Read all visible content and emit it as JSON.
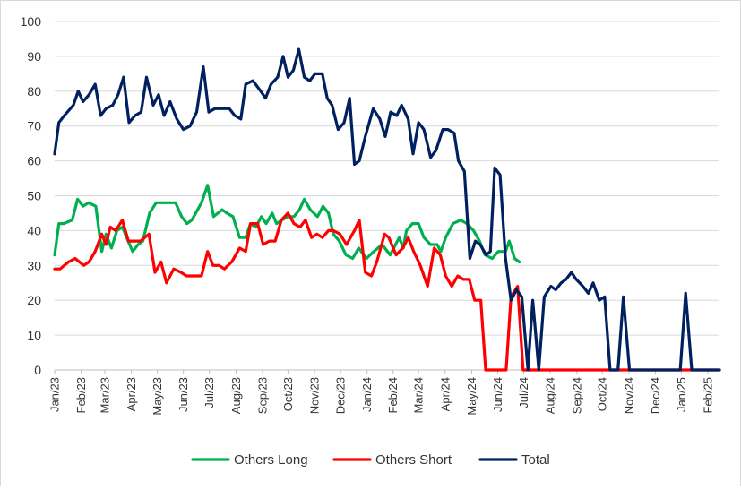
{
  "chart_data": {
    "type": "line",
    "ylim": [
      0,
      100
    ],
    "yticks": [
      "0",
      "10",
      "20",
      "30",
      "40",
      "50",
      "60",
      "70",
      "80",
      "90",
      "100"
    ],
    "xlim": [
      0,
      110
    ],
    "xticks": [
      {
        "label": "Jan/23",
        "x": 0
      },
      {
        "label": "Feb/23",
        "x": 4.4
      },
      {
        "label": "Mar/23",
        "x": 8.3
      },
      {
        "label": "Apr/23",
        "x": 12.7
      },
      {
        "label": "May/23",
        "x": 17
      },
      {
        "label": "Jun/23",
        "x": 21.3
      },
      {
        "label": "Jul/23",
        "x": 25.6
      },
      {
        "label": "Aug/23",
        "x": 30
      },
      {
        "label": "Sep/23",
        "x": 34.4
      },
      {
        "label": "Oct/23",
        "x": 38.6
      },
      {
        "label": "Nov/23",
        "x": 43
      },
      {
        "label": "Dec/23",
        "x": 47.3
      },
      {
        "label": "Jan/24",
        "x": 51.7
      },
      {
        "label": "Feb/24",
        "x": 56
      },
      {
        "label": "Mar/24",
        "x": 60.2
      },
      {
        "label": "Apr/24",
        "x": 64.6
      },
      {
        "label": "May/24",
        "x": 69
      },
      {
        "label": "Jun/24",
        "x": 73.3
      },
      {
        "label": "Jul/24",
        "x": 77.6
      },
      {
        "label": "Aug/24",
        "x": 82
      },
      {
        "label": "Sep/24",
        "x": 86.4
      },
      {
        "label": "Oct/24",
        "x": 90.6
      },
      {
        "label": "Nov/24",
        "x": 95
      },
      {
        "label": "Dec/24",
        "x": 99.4
      },
      {
        "label": "Jan/25",
        "x": 103.7
      },
      {
        "label": "Feb/25",
        "x": 108.1
      }
    ],
    "grid": "horizontal",
    "legend": "bottom",
    "series": [
      {
        "name": "Others Long",
        "color": "#00b050",
        "points": [
          [
            0,
            33
          ],
          [
            0.7,
            42
          ],
          [
            1.5,
            42
          ],
          [
            2.9,
            43
          ],
          [
            3.8,
            49
          ],
          [
            4.7,
            47
          ],
          [
            5.6,
            48
          ],
          [
            6.8,
            47
          ],
          [
            7.8,
            34
          ],
          [
            8.5,
            39
          ],
          [
            9.4,
            35
          ],
          [
            10.3,
            40
          ],
          [
            11.2,
            41
          ],
          [
            12.9,
            34
          ],
          [
            13.8,
            36
          ],
          [
            14.6,
            37
          ],
          [
            15.7,
            45
          ],
          [
            16.8,
            48
          ],
          [
            18.6,
            48
          ],
          [
            20,
            48
          ],
          [
            21,
            44
          ],
          [
            21.9,
            42
          ],
          [
            22.7,
            43
          ],
          [
            24.3,
            48
          ],
          [
            25.3,
            53
          ],
          [
            26.3,
            44
          ],
          [
            27.7,
            46
          ],
          [
            28.5,
            45
          ],
          [
            29.5,
            44
          ],
          [
            30.6,
            38
          ],
          [
            31.6,
            38
          ],
          [
            32.4,
            42
          ],
          [
            33.3,
            41
          ],
          [
            34.2,
            44
          ],
          [
            35,
            42
          ],
          [
            36,
            45
          ],
          [
            36.7,
            42
          ],
          [
            37.6,
            43
          ],
          [
            38.6,
            44
          ],
          [
            39.6,
            44
          ],
          [
            40.5,
            46
          ],
          [
            41.3,
            49
          ],
          [
            42.3,
            46
          ],
          [
            43.5,
            44
          ],
          [
            44.4,
            47
          ],
          [
            45.3,
            45
          ],
          [
            46.1,
            39
          ],
          [
            47.1,
            37
          ],
          [
            48.2,
            33
          ],
          [
            49.3,
            32
          ],
          [
            50.3,
            35
          ],
          [
            51.6,
            32
          ],
          [
            52.8,
            34
          ],
          [
            54.2,
            36
          ],
          [
            55.5,
            33
          ],
          [
            57,
            38
          ],
          [
            57.7,
            35
          ],
          [
            58.2,
            40
          ],
          [
            59.2,
            42
          ],
          [
            60.2,
            42
          ],
          [
            61.1,
            38
          ],
          [
            62.2,
            36
          ],
          [
            63.3,
            36
          ],
          [
            63.9,
            34
          ],
          [
            64.7,
            38
          ],
          [
            65.9,
            42
          ],
          [
            67.2,
            43
          ],
          [
            68.2,
            42
          ],
          [
            69.3,
            40
          ],
          [
            70.3,
            37
          ],
          [
            71.2,
            33
          ],
          [
            72.4,
            32
          ],
          [
            73.4,
            34
          ],
          [
            74.6,
            34
          ],
          [
            75.2,
            37
          ],
          [
            76.1,
            32
          ],
          [
            76.9,
            31
          ]
        ]
      },
      {
        "name": "Others Short",
        "color": "#ff0000",
        "points": [
          [
            0,
            29
          ],
          [
            0.9,
            29
          ],
          [
            2.3,
            31
          ],
          [
            3.4,
            32
          ],
          [
            4.8,
            30
          ],
          [
            5.7,
            31
          ],
          [
            6.7,
            34
          ],
          [
            7.8,
            39
          ],
          [
            8.5,
            36
          ],
          [
            9.2,
            41
          ],
          [
            10.1,
            40
          ],
          [
            11.2,
            43
          ],
          [
            12.2,
            37
          ],
          [
            13.3,
            37
          ],
          [
            14.2,
            37
          ],
          [
            15.6,
            39
          ],
          [
            16.6,
            28
          ],
          [
            17.6,
            31
          ],
          [
            18.5,
            25
          ],
          [
            19.7,
            29
          ],
          [
            20.9,
            28
          ],
          [
            21.8,
            27
          ],
          [
            23.2,
            27
          ],
          [
            24.3,
            27
          ],
          [
            25.3,
            34
          ],
          [
            26.2,
            30
          ],
          [
            27.2,
            30
          ],
          [
            28.1,
            29
          ],
          [
            29.3,
            31
          ],
          [
            30.6,
            35
          ],
          [
            31.6,
            34
          ],
          [
            32.4,
            42
          ],
          [
            33.6,
            42
          ],
          [
            34.5,
            36
          ],
          [
            35.5,
            37
          ],
          [
            36.5,
            37
          ],
          [
            37.5,
            43
          ],
          [
            38.6,
            45
          ],
          [
            39.6,
            42
          ],
          [
            40.6,
            41
          ],
          [
            41.5,
            43
          ],
          [
            42.5,
            38
          ],
          [
            43.4,
            39
          ],
          [
            44.3,
            38
          ],
          [
            45.3,
            40
          ],
          [
            46.1,
            40
          ],
          [
            47.2,
            39
          ],
          [
            48.3,
            36
          ],
          [
            49.6,
            40
          ],
          [
            50.4,
            43
          ],
          [
            51.4,
            28
          ],
          [
            52.4,
            27
          ],
          [
            53.3,
            31
          ],
          [
            54.6,
            39
          ],
          [
            55.3,
            38
          ],
          [
            56.5,
            33
          ],
          [
            57.6,
            35
          ],
          [
            58.5,
            38
          ],
          [
            59.4,
            34
          ],
          [
            60.5,
            30
          ],
          [
            61.7,
            24
          ],
          [
            62.8,
            35
          ],
          [
            63.8,
            33
          ],
          [
            64.7,
            27
          ],
          [
            65.7,
            24
          ],
          [
            66.7,
            27
          ],
          [
            67.6,
            26
          ],
          [
            68.6,
            26
          ],
          [
            69.5,
            20
          ],
          [
            70.5,
            20
          ],
          [
            71.3,
            0
          ],
          [
            74.7,
            0
          ],
          [
            75.5,
            21
          ],
          [
            76.6,
            24
          ],
          [
            77.5,
            0
          ],
          [
            110,
            0
          ]
        ]
      },
      {
        "name": "Total",
        "color": "#002060",
        "points": [
          [
            0,
            62
          ],
          [
            0.7,
            71
          ],
          [
            1.6,
            73
          ],
          [
            3.1,
            76
          ],
          [
            3.9,
            80
          ],
          [
            4.7,
            77
          ],
          [
            5.7,
            79
          ],
          [
            6.7,
            82
          ],
          [
            7.6,
            73
          ],
          [
            8.5,
            75
          ],
          [
            9.6,
            76
          ],
          [
            10.5,
            79
          ],
          [
            11.4,
            84
          ],
          [
            12.3,
            71
          ],
          [
            13.3,
            73
          ],
          [
            14.3,
            74
          ],
          [
            15.2,
            84
          ],
          [
            16.3,
            76
          ],
          [
            17.2,
            79
          ],
          [
            18.1,
            73
          ],
          [
            19.1,
            77
          ],
          [
            20.2,
            72
          ],
          [
            21.3,
            69
          ],
          [
            22.4,
            70
          ],
          [
            23.5,
            74
          ],
          [
            24.6,
            87
          ],
          [
            25.5,
            74
          ],
          [
            26.5,
            75
          ],
          [
            27.9,
            75
          ],
          [
            28.9,
            75
          ],
          [
            29.8,
            73
          ],
          [
            30.8,
            72
          ],
          [
            31.6,
            82
          ],
          [
            32.8,
            83
          ],
          [
            34.1,
            80
          ],
          [
            34.9,
            78
          ],
          [
            35.8,
            82
          ],
          [
            36.9,
            84
          ],
          [
            37.8,
            90
          ],
          [
            38.6,
            84
          ],
          [
            39.5,
            86
          ],
          [
            40.4,
            92
          ],
          [
            41.3,
            84
          ],
          [
            42.2,
            83
          ],
          [
            43.1,
            85
          ],
          [
            44.3,
            85
          ],
          [
            45.1,
            78
          ],
          [
            45.9,
            76
          ],
          [
            46.9,
            69
          ],
          [
            47.9,
            71
          ],
          [
            48.8,
            78
          ],
          [
            49.6,
            59
          ],
          [
            50.4,
            60
          ],
          [
            51.4,
            67
          ],
          [
            52.7,
            75
          ],
          [
            53.8,
            72
          ],
          [
            54.7,
            67
          ],
          [
            55.6,
            74
          ],
          [
            56.6,
            73
          ],
          [
            57.4,
            76
          ],
          [
            58.5,
            72
          ],
          [
            59.3,
            62
          ],
          [
            60.2,
            71
          ],
          [
            61.1,
            69
          ],
          [
            62.2,
            61
          ],
          [
            63.1,
            63
          ],
          [
            64.2,
            69
          ],
          [
            65.1,
            69
          ],
          [
            66.1,
            68
          ],
          [
            66.8,
            60
          ],
          [
            67.8,
            57
          ],
          [
            68.7,
            32
          ],
          [
            69.6,
            37
          ],
          [
            70.4,
            36
          ],
          [
            71.4,
            33
          ],
          [
            72.1,
            34
          ],
          [
            72.8,
            58
          ],
          [
            73.7,
            56
          ],
          [
            74.6,
            32
          ],
          [
            75.5,
            20
          ],
          [
            76.4,
            23
          ],
          [
            77.3,
            21
          ],
          [
            78.3,
            0
          ],
          [
            79.1,
            20
          ],
          [
            80.1,
            0
          ],
          [
            81,
            21
          ],
          [
            82.1,
            24
          ],
          [
            82.9,
            23
          ],
          [
            83.8,
            25
          ],
          [
            84.6,
            26
          ],
          [
            85.5,
            28
          ],
          [
            86.3,
            26
          ],
          [
            87.4,
            24
          ],
          [
            88.3,
            22
          ],
          [
            89.1,
            25
          ],
          [
            90.1,
            20
          ],
          [
            91,
            21
          ],
          [
            91.9,
            0
          ],
          [
            93.2,
            0
          ],
          [
            94.1,
            21
          ],
          [
            95.1,
            0
          ],
          [
            103.5,
            0
          ],
          [
            104.4,
            22
          ],
          [
            105.4,
            0
          ],
          [
            110,
            0
          ]
        ]
      }
    ]
  }
}
